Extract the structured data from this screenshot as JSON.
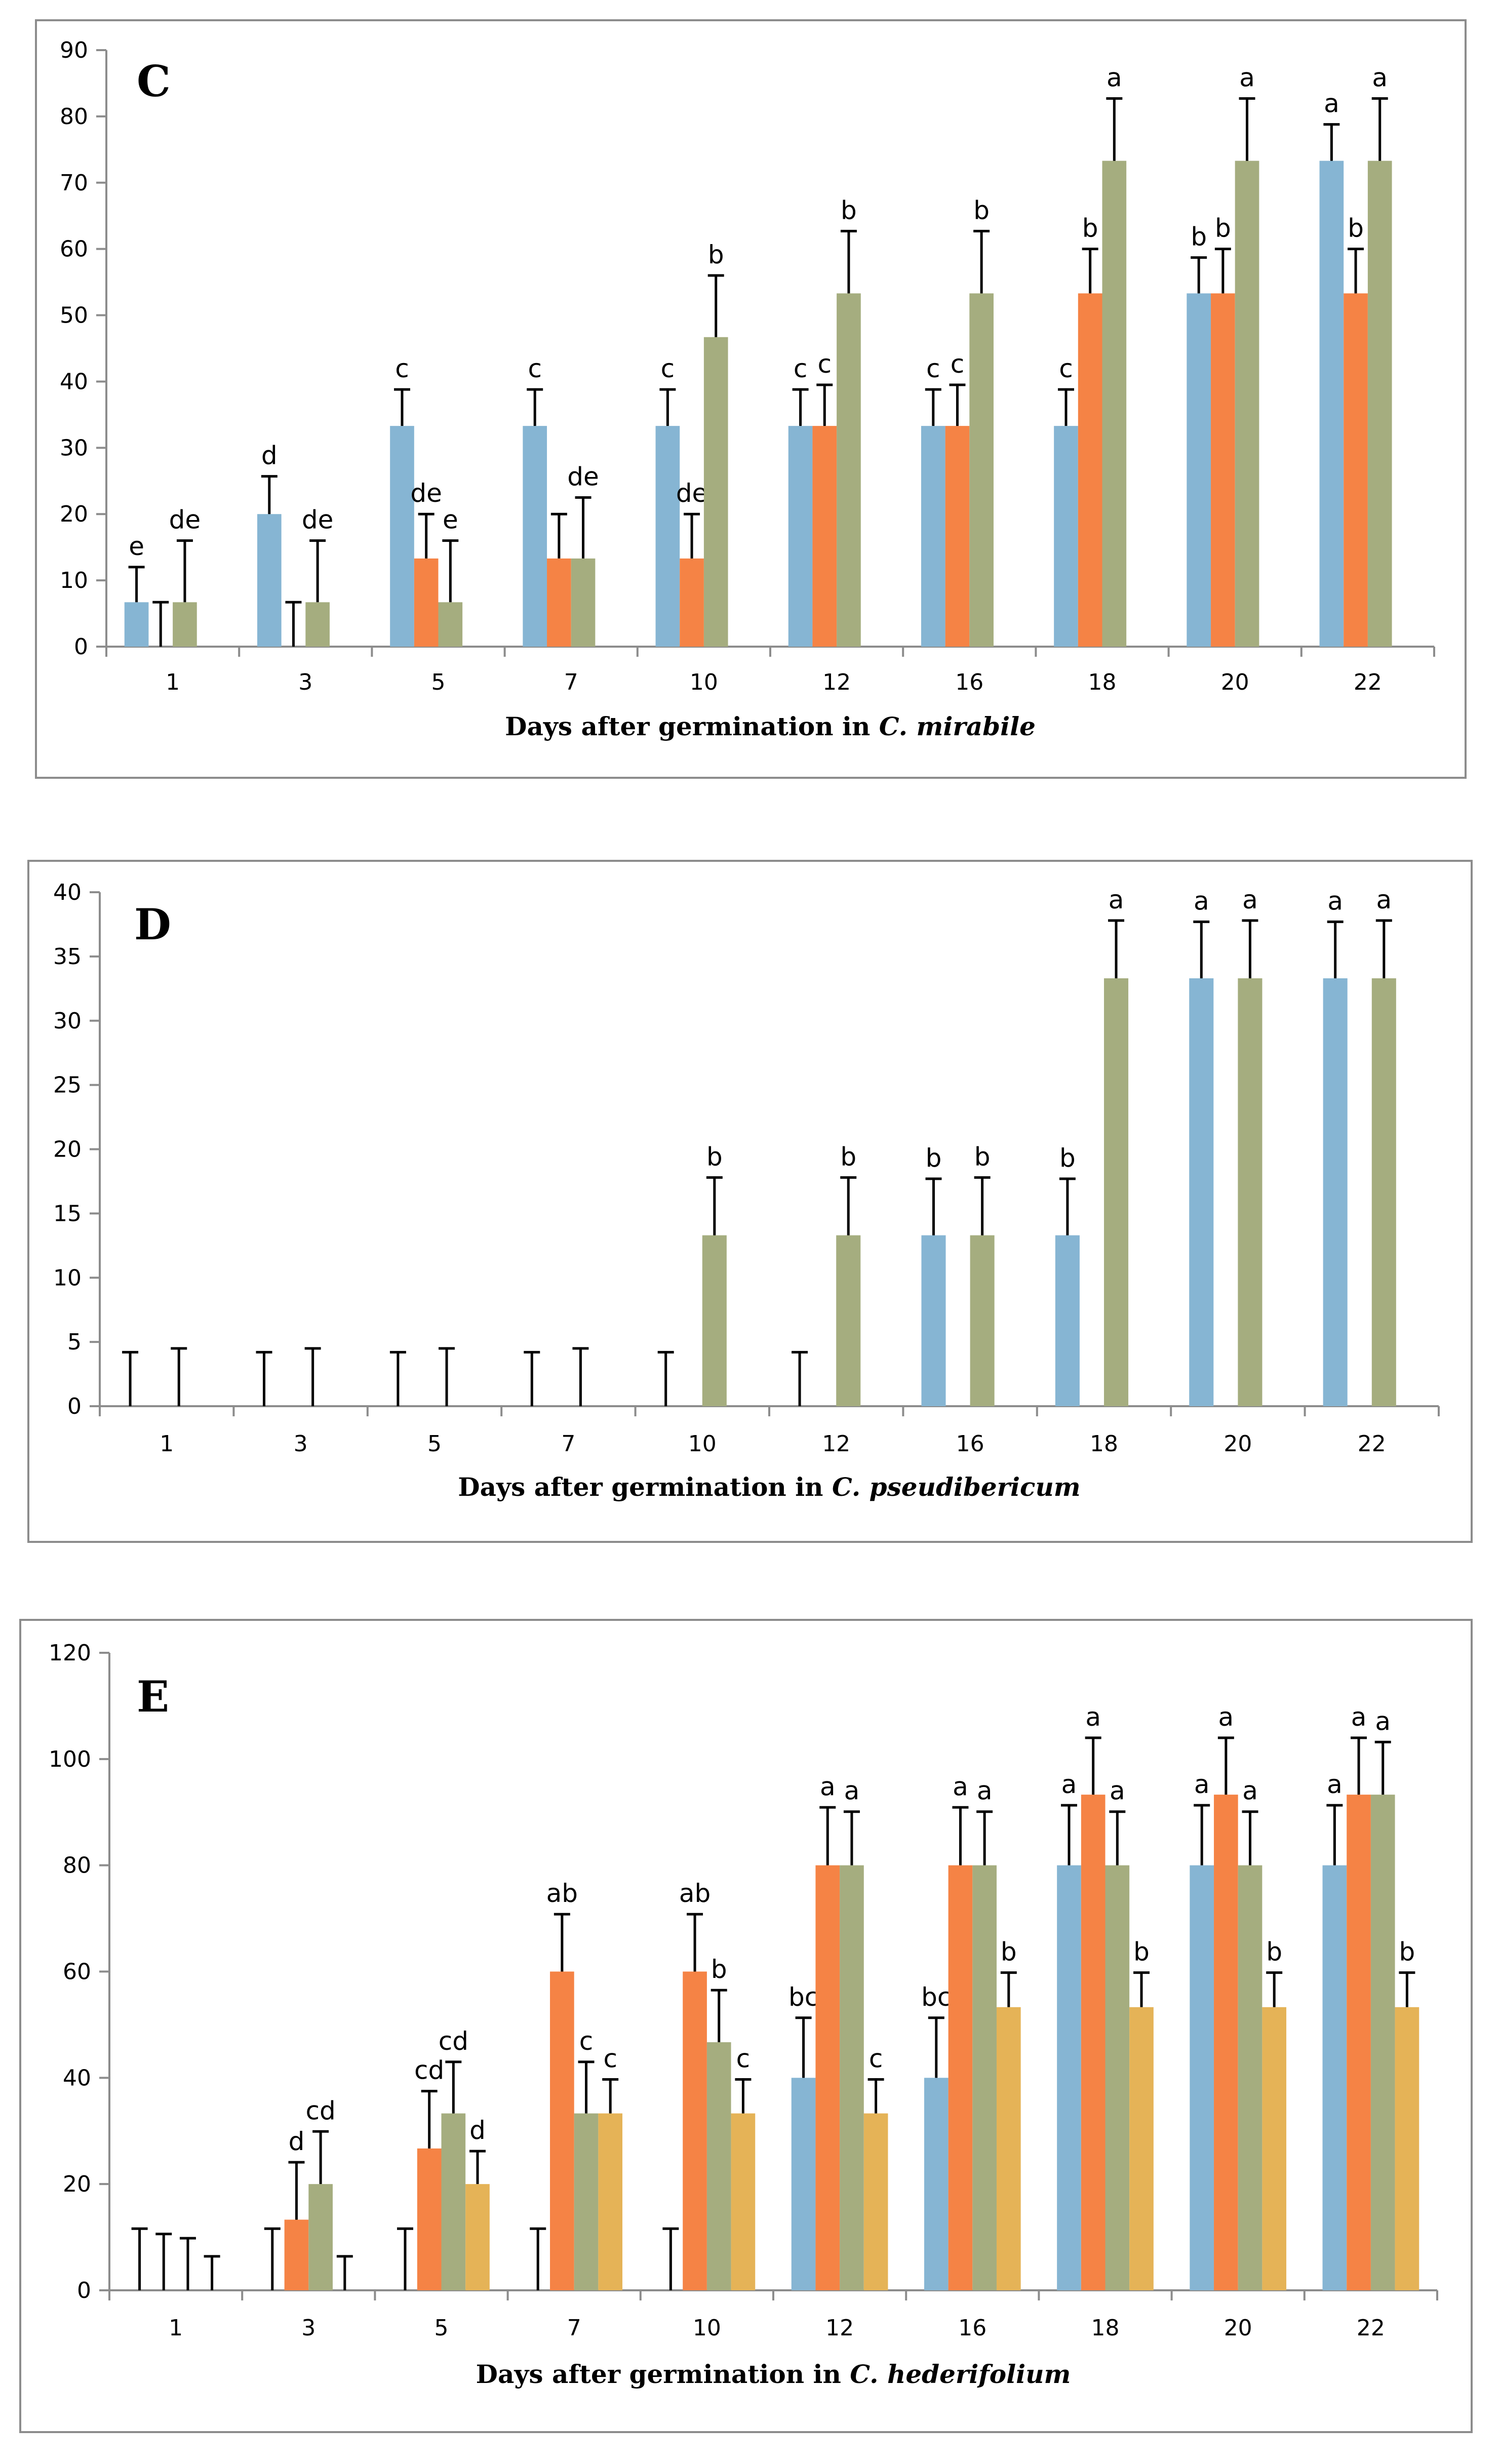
{
  "chart_data": [
    {
      "type": "bar",
      "title": "C",
      "xlabel_prefix": "Days after germination  in ",
      "xlabel_species": "C. mirabile",
      "ylabel": "",
      "ylim": [
        0,
        90
      ],
      "ytick_step": 10,
      "yticks": [
        "0",
        "10",
        "20",
        "30",
        "40",
        "50",
        "60",
        "70",
        "80",
        "90"
      ],
      "categories": [
        "1",
        "3",
        "5",
        "7",
        "10",
        "12",
        "16",
        "18",
        "20",
        "22"
      ],
      "grid": false,
      "series": [
        {
          "color": "#86b5d3",
          "values": [
            6.7,
            20,
            33.3,
            33.3,
            33.3,
            33.3,
            33.3,
            33.3,
            53.3,
            73.3
          ],
          "errors": [
            5.3,
            5.7,
            5.5,
            5.5,
            5.5,
            5.5,
            5.5,
            5.5,
            5.4,
            5.5
          ],
          "labels": [
            "e",
            "d",
            "c",
            "c",
            "c",
            "c",
            "c",
            "c",
            "b",
            "a"
          ]
        },
        {
          "color": "#f58345",
          "values": [
            0,
            0,
            13.3,
            13.3,
            13.3,
            33.3,
            33.3,
            53.3,
            53.3,
            53.3
          ],
          "errors": [
            6.7,
            6.7,
            6.7,
            6.7,
            6.7,
            6.2,
            6.2,
            6.7,
            6.7,
            6.7
          ],
          "labels": [
            "",
            "",
            "de",
            "",
            "de",
            "c",
            "c",
            "b",
            "b",
            "b"
          ]
        },
        {
          "color": "#a5ad7f",
          "values": [
            6.7,
            6.7,
            6.7,
            13.3,
            46.7,
            53.3,
            53.3,
            73.3,
            73.3,
            73.3
          ],
          "errors": [
            9.3,
            9.3,
            9.3,
            9.2,
            9.3,
            9.4,
            9.4,
            9.4,
            9.4,
            9.4
          ],
          "labels": [
            "de",
            "de",
            "e",
            "de",
            "b",
            "b",
            "b",
            "a",
            "a",
            "a"
          ]
        },
        {
          "color": "#e5b357",
          "values": [
            0,
            0,
            0,
            0,
            0,
            0,
            0,
            0,
            0,
            0
          ],
          "errors": [
            null,
            null,
            null,
            null,
            null,
            null,
            null,
            null,
            null,
            null
          ],
          "labels": [
            "",
            "",
            "",
            "",
            "",
            "",
            "",
            "",
            "",
            ""
          ]
        }
      ]
    },
    {
      "type": "bar",
      "title": "D",
      "xlabel_prefix": "Days after germination  in ",
      "xlabel_species": "C. pseudibericum",
      "ylabel": "",
      "ylim": [
        0,
        40
      ],
      "ytick_step": 5,
      "yticks": [
        "0",
        "5",
        "10",
        "15",
        "20",
        "25",
        "30",
        "35",
        "40"
      ],
      "categories": [
        "1",
        "3",
        "5",
        "7",
        "10",
        "12",
        "16",
        "18",
        "20",
        "22"
      ],
      "grid": false,
      "series": [
        {
          "color": "#86b5d3",
          "values": [
            0,
            0,
            0,
            0,
            0,
            0,
            13.3,
            13.3,
            33.3,
            33.3
          ],
          "errors": [
            4.2,
            4.2,
            4.2,
            4.2,
            4.2,
            4.2,
            4.4,
            4.4,
            4.4,
            4.4
          ],
          "labels": [
            "",
            "",
            "",
            "",
            "",
            "",
            "b",
            "b",
            "a",
            "a"
          ]
        },
        {
          "color": "#f58345",
          "values": [
            0,
            0,
            0,
            0,
            0,
            0,
            0,
            0,
            0,
            0
          ],
          "errors": [
            null,
            null,
            null,
            null,
            null,
            null,
            null,
            null,
            null,
            null
          ],
          "labels": [
            "",
            "",
            "",
            "",
            "",
            "",
            "",
            "",
            "",
            ""
          ]
        },
        {
          "color": "#a5ad7f",
          "values": [
            0,
            0,
            0,
            0,
            13.3,
            13.3,
            13.3,
            33.3,
            33.3,
            33.3
          ],
          "errors": [
            4.5,
            4.5,
            4.5,
            4.5,
            4.5,
            4.5,
            4.5,
            4.5,
            4.5,
            4.5
          ],
          "labels": [
            "",
            "",
            "",
            "",
            "b",
            "b",
            "b",
            "a",
            "a",
            "a"
          ]
        },
        {
          "color": "#e5b357",
          "values": [
            0,
            0,
            0,
            0,
            0,
            0,
            0,
            0,
            0,
            0
          ],
          "errors": [
            null,
            null,
            null,
            null,
            null,
            null,
            null,
            null,
            null,
            null
          ],
          "labels": [
            "",
            "",
            "",
            "",
            "",
            "",
            "",
            "",
            "",
            ""
          ]
        }
      ]
    },
    {
      "type": "bar",
      "title": "E",
      "xlabel_prefix": "Days after germination  in ",
      "xlabel_species": "C. hederifolium",
      "ylabel": "",
      "ylim": [
        0,
        120
      ],
      "ytick_step": 20,
      "yticks": [
        "0",
        "20",
        "40",
        "60",
        "80",
        "100",
        "120"
      ],
      "categories": [
        "1",
        "3",
        "5",
        "7",
        "10",
        "12",
        "16",
        "18",
        "20",
        "22"
      ],
      "grid": false,
      "series": [
        {
          "color": "#86b5d3",
          "values": [
            0,
            0,
            0,
            0,
            0,
            40,
            40,
            80,
            80,
            80
          ],
          "errors": [
            11.6,
            11.6,
            11.6,
            11.6,
            11.6,
            11.3,
            11.3,
            11.3,
            11.3,
            11.3
          ],
          "labels": [
            "",
            "",
            "",
            "",
            "",
            "bc",
            "bc",
            "a",
            "a",
            "a"
          ]
        },
        {
          "color": "#f58345",
          "values": [
            0,
            13.3,
            26.7,
            60,
            60,
            80,
            80,
            93.3,
            93.3,
            93.3
          ],
          "errors": [
            10.6,
            10.8,
            10.8,
            10.8,
            10.8,
            10.9,
            10.9,
            10.7,
            10.7,
            10.7
          ],
          "labels": [
            "",
            "d",
            "cd",
            "ab",
            "ab",
            "a",
            "a",
            "a",
            "a",
            "a"
          ]
        },
        {
          "color": "#a5ad7f",
          "values": [
            0,
            20,
            33.3,
            33.3,
            46.7,
            80,
            80,
            80,
            80,
            93.3
          ],
          "errors": [
            9.8,
            9.9,
            9.7,
            9.7,
            9.8,
            10.1,
            10.1,
            10.1,
            10.1,
            9.9
          ],
          "labels": [
            "",
            "cd",
            "cd",
            "c",
            "b",
            "a",
            "a",
            "a",
            "a",
            "a"
          ]
        },
        {
          "color": "#e5b357",
          "values": [
            0,
            0,
            20,
            33.3,
            33.3,
            33.3,
            53.3,
            53.3,
            53.3,
            53.3
          ],
          "errors": [
            6.4,
            6.4,
            6.2,
            6.4,
            6.4,
            6.4,
            6.5,
            6.5,
            6.5,
            6.5
          ],
          "labels": [
            "",
            "",
            "d",
            "c",
            "c",
            "c",
            "b",
            "b",
            "b",
            "b"
          ]
        }
      ]
    }
  ]
}
